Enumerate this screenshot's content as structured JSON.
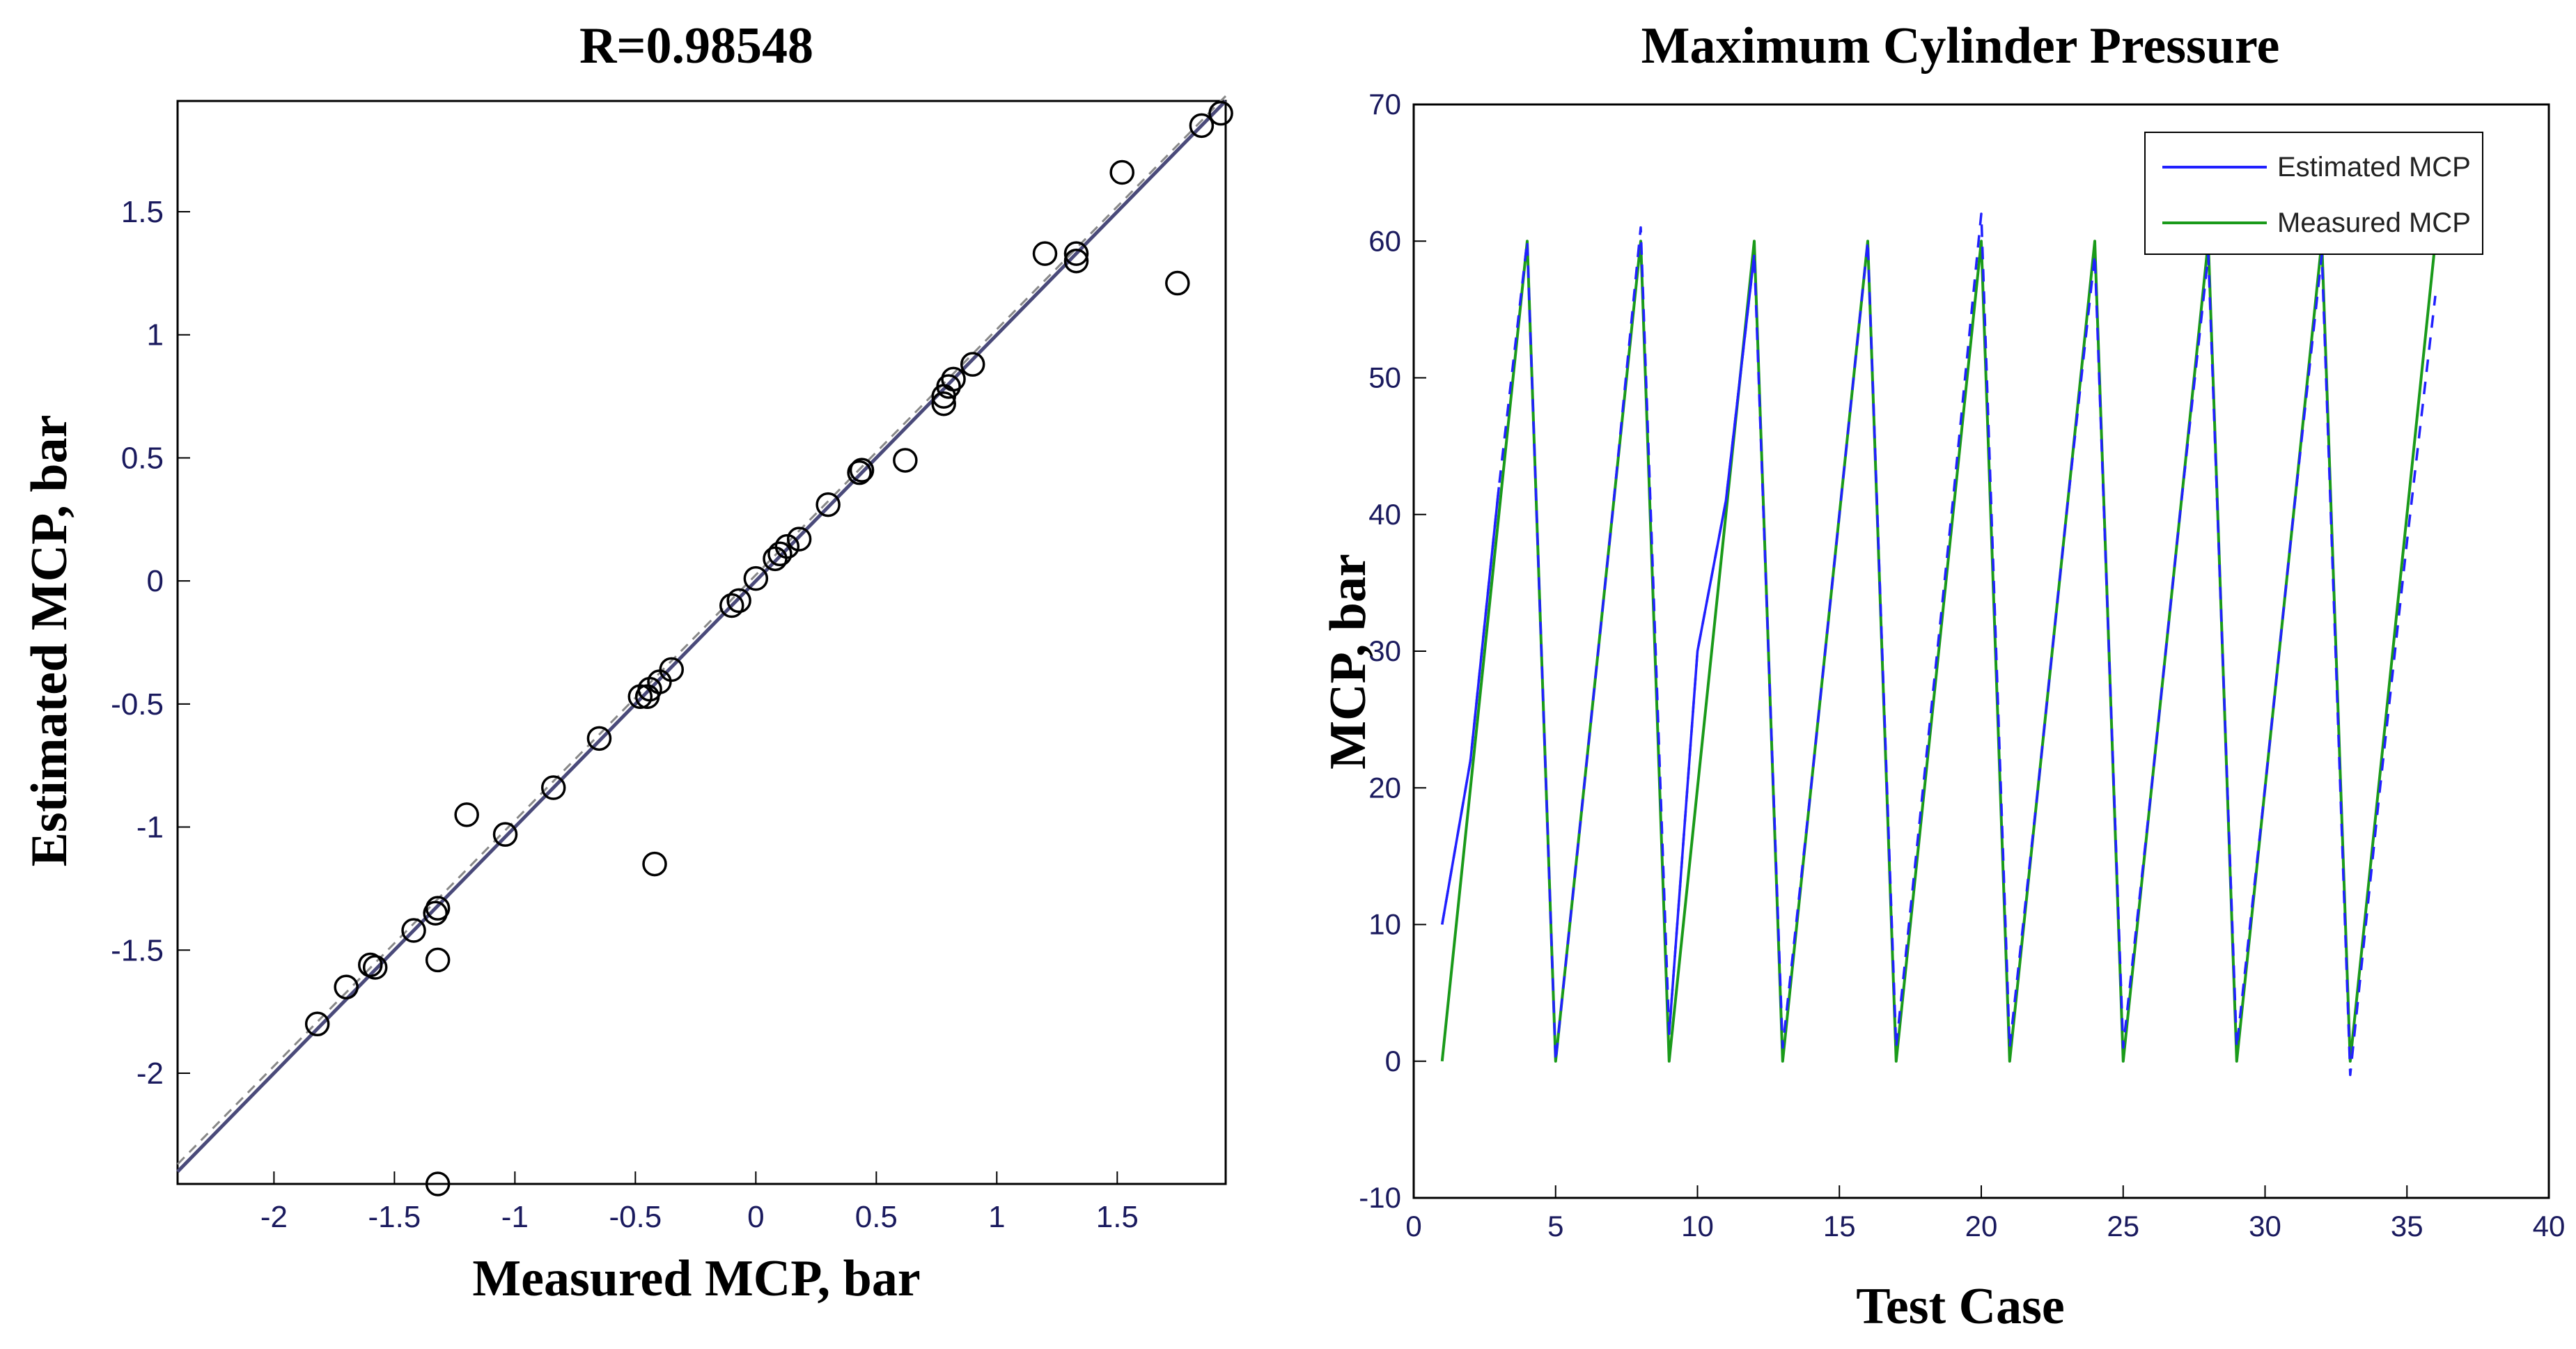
{
  "chart_data": [
    {
      "type": "scatter",
      "title": "R=0.98548",
      "xlabel": "Measured MCP, bar",
      "ylabel": "Estimated MCP, bar",
      "xlim": [
        -2.4,
        1.95
      ],
      "ylim": [
        -2.45,
        1.95
      ],
      "xticks": [
        -2,
        -1.5,
        -1,
        -0.5,
        0,
        0.5,
        1,
        1.5
      ],
      "yticks": [
        -2,
        -1.5,
        -1,
        -0.5,
        0,
        0.5,
        1,
        1.5
      ],
      "xtick_labels": [
        "-2",
        "-1.5",
        "-1",
        "-0.5",
        "0",
        "0.5",
        "1",
        "1.5"
      ],
      "ytick_labels": [
        "-2",
        "-1.5",
        "-1",
        "-0.5",
        "0",
        "0.5",
        "1",
        "1.5"
      ],
      "fit_line": {
        "slope": 1.0,
        "intercept": 0.0,
        "color": "#4a4a7a"
      },
      "identity_line": {
        "style": "dashed",
        "color": "#888888"
      },
      "points": [
        {
          "x": 1.93,
          "y": 1.9
        },
        {
          "x": 1.85,
          "y": 1.85
        },
        {
          "x": 1.52,
          "y": 1.66
        },
        {
          "x": 1.75,
          "y": 1.21
        },
        {
          "x": 1.33,
          "y": 1.33
        },
        {
          "x": 1.33,
          "y": 1.3
        },
        {
          "x": 1.2,
          "y": 1.33
        },
        {
          "x": 0.9,
          "y": 0.88
        },
        {
          "x": 0.82,
          "y": 0.82
        },
        {
          "x": 0.8,
          "y": 0.79
        },
        {
          "x": 0.78,
          "y": 0.75
        },
        {
          "x": 0.78,
          "y": 0.72
        },
        {
          "x": 0.62,
          "y": 0.49
        },
        {
          "x": 0.44,
          "y": 0.45
        },
        {
          "x": 0.43,
          "y": 0.44
        },
        {
          "x": 0.3,
          "y": 0.31
        },
        {
          "x": 0.18,
          "y": 0.17
        },
        {
          "x": 0.13,
          "y": 0.14
        },
        {
          "x": 0.1,
          "y": 0.11
        },
        {
          "x": 0.08,
          "y": 0.09
        },
        {
          "x": 0.0,
          "y": 0.01
        },
        {
          "x": -0.07,
          "y": -0.08
        },
        {
          "x": -0.1,
          "y": -0.1
        },
        {
          "x": -0.35,
          "y": -0.36
        },
        {
          "x": -0.4,
          "y": -0.41
        },
        {
          "x": -0.44,
          "y": -0.44
        },
        {
          "x": -0.45,
          "y": -0.47
        },
        {
          "x": -0.48,
          "y": -0.47
        },
        {
          "x": -0.42,
          "y": -1.15
        },
        {
          "x": -0.65,
          "y": -0.64
        },
        {
          "x": -0.84,
          "y": -0.84
        },
        {
          "x": -1.04,
          "y": -1.03
        },
        {
          "x": -1.2,
          "y": -0.95
        },
        {
          "x": -1.32,
          "y": -1.33
        },
        {
          "x": -1.33,
          "y": -1.35
        },
        {
          "x": -1.42,
          "y": -1.42
        },
        {
          "x": -1.32,
          "y": -1.54
        },
        {
          "x": -1.58,
          "y": -1.57
        },
        {
          "x": -1.6,
          "y": -1.56
        },
        {
          "x": -1.7,
          "y": -1.65
        },
        {
          "x": -1.82,
          "y": -1.8
        },
        {
          "x": -1.32,
          "y": -2.45
        }
      ]
    },
    {
      "type": "line",
      "title": "Maximum Cylinder Pressure",
      "xlabel": "Test Case",
      "ylabel": "MCP, bar",
      "xlim": [
        0,
        40
      ],
      "ylim": [
        -10,
        70
      ],
      "xticks": [
        0,
        5,
        10,
        15,
        20,
        25,
        30,
        35,
        40
      ],
      "yticks": [
        -10,
        0,
        10,
        20,
        30,
        40,
        50,
        60,
        70
      ],
      "xtick_labels": [
        "0",
        "5",
        "10",
        "15",
        "20",
        "25",
        "30",
        "35",
        "40"
      ],
      "ytick_labels": [
        "-10",
        "0",
        "10",
        "20",
        "30",
        "40",
        "50",
        "60",
        "70"
      ],
      "legend_position": "top-right",
      "series": [
        {
          "name": "Estimated MCP",
          "color": "#2020ff",
          "x": [
            1,
            2,
            3,
            4,
            5,
            6,
            7,
            8,
            9,
            10,
            11,
            12,
            13,
            14,
            15,
            16,
            17,
            18,
            19,
            20,
            21,
            22,
            23,
            24,
            25,
            26,
            27,
            28,
            29,
            30,
            31,
            32,
            33,
            34,
            35,
            36
          ],
          "values": [
            10,
            22,
            42,
            60,
            0,
            20,
            40,
            61,
            2,
            30,
            41,
            59,
            1,
            20,
            40,
            60,
            1,
            21,
            41,
            62,
            1,
            20,
            40,
            59,
            1,
            20,
            40,
            59,
            1,
            20,
            40,
            59,
            -1,
            19,
            38,
            56
          ]
        },
        {
          "name": "Measured MCP",
          "color": "#1a9a1a",
          "x": [
            1,
            2,
            3,
            4,
            5,
            6,
            7,
            8,
            9,
            10,
            11,
            12,
            13,
            14,
            15,
            16,
            17,
            18,
            19,
            20,
            21,
            22,
            23,
            24,
            25,
            26,
            27,
            28,
            29,
            30,
            31,
            32,
            33,
            34,
            35,
            36
          ],
          "values": [
            0,
            20,
            40,
            60,
            0,
            20,
            40,
            60,
            0,
            20,
            40,
            60,
            0,
            20,
            40,
            60,
            0,
            20,
            40,
            60,
            0,
            20,
            40,
            60,
            0,
            20,
            40,
            60,
            0,
            20,
            40,
            60,
            0,
            20,
            40,
            60
          ]
        }
      ]
    }
  ]
}
